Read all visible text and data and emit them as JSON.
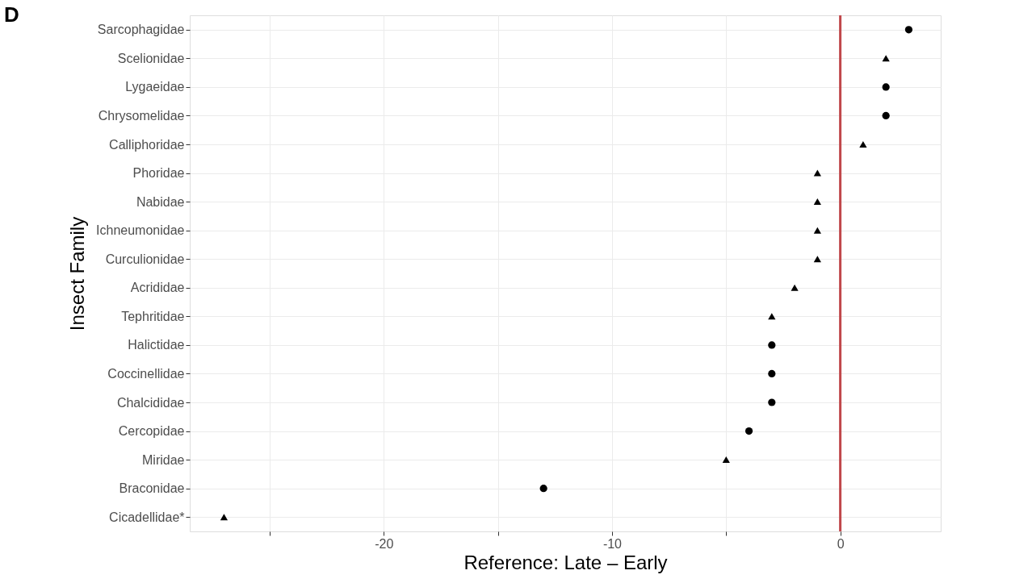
{
  "chart_data": {
    "type": "scatter",
    "ylabel": "Insect Family",
    "xlabel": "Reference: Late – Early",
    "annotations": [
      "D"
    ],
    "categories": [
      "Sarcophagidae",
      "Scelionidae",
      "Lygaeidae",
      "Chrysomelidae",
      "Calliphoridae",
      "Phoridae",
      "Nabidae",
      "Ichneumonidae",
      "Curculionidae",
      "Acrididae",
      "Tephritidae",
      "Halictidae",
      "Coccinellidae",
      "Chalcididae",
      "Cercopidae",
      "Miridae",
      "Braconidae",
      "Cicadellidae*"
    ],
    "series": [
      {
        "color": "#000000",
        "marker": "circle",
        "values": [
          3,
          null,
          2,
          2,
          null,
          null,
          null,
          null,
          null,
          null,
          null,
          -3,
          -3,
          -3,
          -4,
          null,
          -13,
          null
        ]
      },
      {
        "color": "#000000",
        "marker": "triangle",
        "values": [
          null,
          2,
          null,
          null,
          1,
          -1,
          -1,
          -1,
          -1,
          -2,
          -3,
          null,
          null,
          null,
          null,
          -5,
          null,
          -27
        ]
      }
    ],
    "xlim": [
      -28.5,
      4.4
    ],
    "xticks": [
      {
        "value": -25,
        "label": null
      },
      -20,
      {
        "value": -15,
        "label": null
      },
      -10,
      {
        "value": -5,
        "label": null
      },
      0
    ],
    "ref_lines": [
      {
        "axis": "x",
        "value": 0,
        "color": "#c0474a"
      }
    ],
    "grid": true,
    "orientation": "horizontal"
  }
}
